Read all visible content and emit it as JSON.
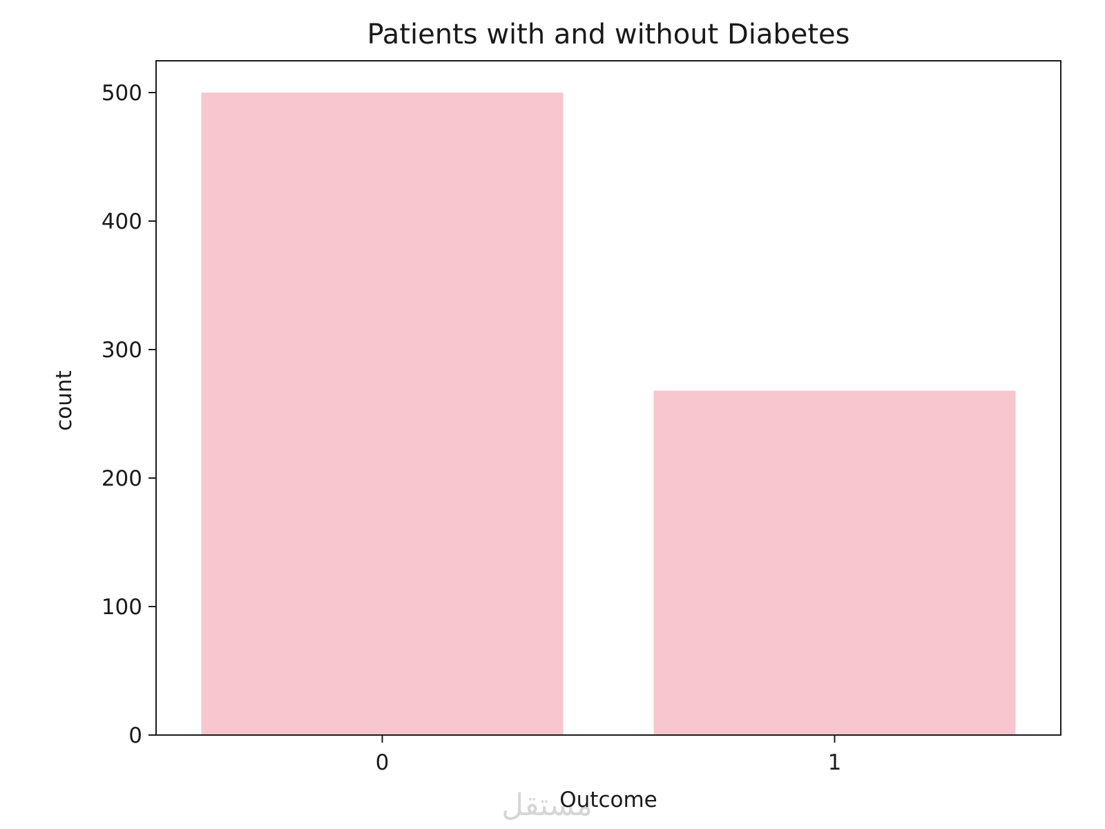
{
  "chart_data": {
    "type": "bar",
    "title": "Patients with and without Diabetes",
    "xlabel": "Outcome",
    "ylabel": "count",
    "categories": [
      "0",
      "1"
    ],
    "values": [
      500,
      268
    ],
    "ylim": [
      0,
      525
    ],
    "yticks": [
      0,
      100,
      200,
      300,
      400,
      500
    ],
    "bar_color": "#f7c6cf",
    "grid": false,
    "legend": "none"
  },
  "watermark": "مستقل"
}
